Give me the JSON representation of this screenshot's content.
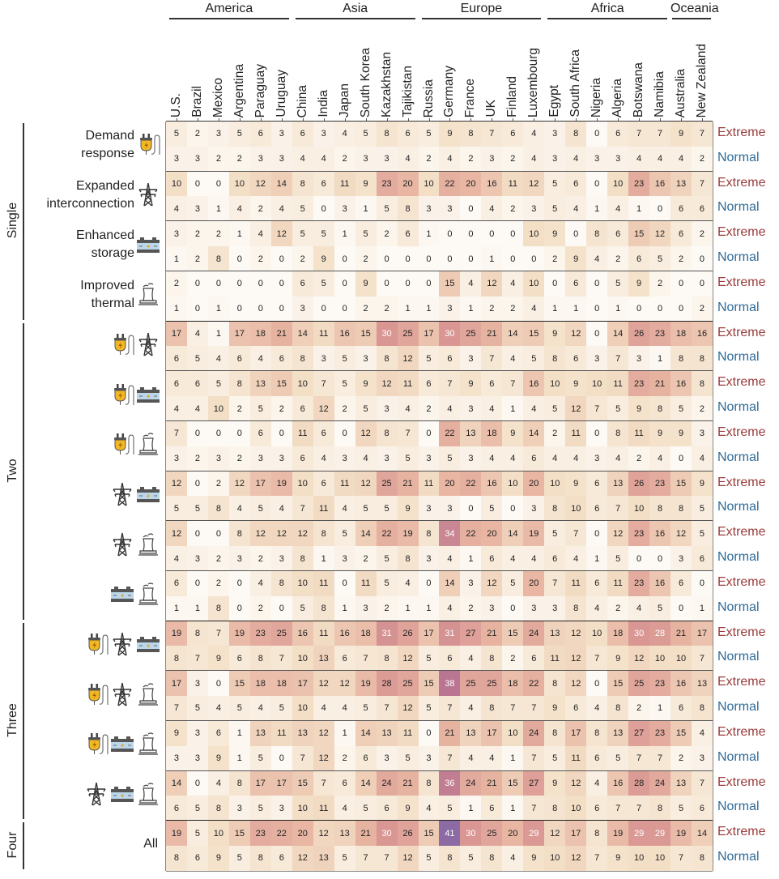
{
  "chart_data": {
    "type": "heatmap",
    "column_groups": [
      {
        "name": "America",
        "columns": [
          "U.S.",
          "Brazil",
          "Mexico",
          "Argentina",
          "Paraguay",
          "Uruguay"
        ]
      },
      {
        "name": "Asia",
        "columns": [
          "China",
          "India",
          "Japan",
          "South Korea",
          "Kazakhstan",
          "Tajikistan"
        ]
      },
      {
        "name": "Europe",
        "columns": [
          "Russia",
          "Germany",
          "France",
          "UK",
          "Finland",
          "Luxembourg"
        ]
      },
      {
        "name": "Africa",
        "columns": [
          "Egypt",
          "South Africa",
          "Nigeria",
          "Algeria",
          "Botswana",
          "Namibia"
        ]
      },
      {
        "name": "Oceania",
        "columns": [
          "Australia",
          "New Zealand"
        ]
      }
    ],
    "scenario_labels": {
      "extreme": "Extreme",
      "normal": "Normal"
    },
    "color_scale": {
      "min": 0,
      "max": 41,
      "colors": [
        "#fdfaf6",
        "#f3dfc6",
        "#e8b6a3",
        "#d99693",
        "#b97592",
        "#8c6aa3"
      ]
    },
    "row_groups": [
      {
        "name": "Single",
        "strategies": [
          {
            "label_lines": [
              "Demand",
              "response"
            ],
            "icons": [
              "plug-icon"
            ],
            "extreme": [
              5,
              2,
              3,
              5,
              6,
              3,
              6,
              3,
              4,
              5,
              8,
              6,
              5,
              9,
              8,
              7,
              6,
              4,
              3,
              8,
              0,
              6,
              7,
              7,
              9,
              7
            ],
            "normal": [
              3,
              3,
              2,
              2,
              3,
              3,
              4,
              4,
              2,
              3,
              3,
              4,
              2,
              4,
              2,
              3,
              2,
              4,
              3,
              4,
              3,
              3,
              4,
              4,
              4,
              2
            ]
          },
          {
            "label_lines": [
              "Expanded",
              "interconnection"
            ],
            "icons": [
              "transmission-tower-icon"
            ],
            "extreme": [
              10,
              0,
              0,
              10,
              12,
              14,
              8,
              6,
              11,
              9,
              23,
              20,
              10,
              22,
              20,
              16,
              11,
              12,
              5,
              6,
              0,
              10,
              23,
              16,
              13,
              7
            ],
            "normal": [
              4,
              3,
              1,
              4,
              2,
              4,
              5,
              0,
              3,
              1,
              5,
              8,
              3,
              3,
              0,
              4,
              2,
              3,
              5,
              4,
              1,
              4,
              1,
              0,
              6,
              6
            ]
          },
          {
            "label_lines": [
              "Enhanced",
              "storage"
            ],
            "icons": [
              "battery-icon"
            ],
            "extreme": [
              3,
              2,
              2,
              1,
              4,
              12,
              5,
              5,
              1,
              5,
              2,
              6,
              1,
              0,
              0,
              0,
              0,
              10,
              9,
              0,
              8,
              6,
              15,
              12,
              6,
              2
            ],
            "normal": [
              1,
              2,
              8,
              0,
              2,
              0,
              2,
              9,
              0,
              2,
              0,
              0,
              0,
              0,
              0,
              1,
              0,
              0,
              2,
              9,
              4,
              2,
              6,
              5,
              2,
              0
            ]
          },
          {
            "label_lines": [
              "Improved",
              "thermal"
            ],
            "icons": [
              "thermal-plant-icon"
            ],
            "extreme": [
              2,
              0,
              0,
              0,
              0,
              0,
              6,
              5,
              0,
              9,
              0,
              0,
              0,
              15,
              4,
              12,
              4,
              10,
              0,
              6,
              0,
              5,
              9,
              2,
              0,
              0
            ],
            "normal": [
              1,
              0,
              1,
              0,
              0,
              0,
              3,
              0,
              0,
              2,
              2,
              1,
              1,
              3,
              1,
              2,
              2,
              4,
              1,
              1,
              0,
              1,
              0,
              0,
              0,
              2
            ]
          }
        ]
      },
      {
        "name": "Two",
        "strategies": [
          {
            "label_lines": [],
            "icons": [
              "plug-icon",
              "transmission-tower-icon"
            ],
            "extreme": [
              17,
              4,
              1,
              17,
              18,
              21,
              14,
              11,
              16,
              15,
              30,
              25,
              17,
              30,
              25,
              21,
              14,
              15,
              9,
              12,
              0,
              14,
              26,
              23,
              18,
              16
            ],
            "normal": [
              6,
              5,
              4,
              6,
              4,
              6,
              8,
              3,
              5,
              3,
              8,
              12,
              5,
              6,
              3,
              7,
              4,
              5,
              8,
              6,
              3,
              7,
              3,
              1,
              8,
              8
            ]
          },
          {
            "label_lines": [],
            "icons": [
              "plug-icon",
              "battery-icon"
            ],
            "extreme": [
              6,
              6,
              5,
              8,
              13,
              15,
              10,
              7,
              5,
              9,
              12,
              11,
              6,
              7,
              9,
              6,
              7,
              16,
              10,
              9,
              10,
              11,
              23,
              21,
              16,
              8
            ],
            "normal": [
              4,
              4,
              10,
              2,
              5,
              2,
              6,
              12,
              2,
              5,
              3,
              4,
              2,
              4,
              3,
              4,
              1,
              4,
              5,
              12,
              7,
              5,
              9,
              8,
              5,
              2
            ]
          },
          {
            "label_lines": [],
            "icons": [
              "plug-icon",
              "thermal-plant-icon"
            ],
            "extreme": [
              7,
              0,
              0,
              0,
              6,
              0,
              11,
              6,
              0,
              12,
              8,
              7,
              0,
              22,
              13,
              18,
              9,
              14,
              2,
              11,
              0,
              8,
              11,
              9,
              9,
              3
            ],
            "normal": [
              3,
              2,
              3,
              2,
              3,
              3,
              6,
              4,
              3,
              4,
              3,
              5,
              3,
              5,
              3,
              4,
              4,
              6,
              4,
              4,
              3,
              4,
              2,
              4,
              0,
              4
            ]
          },
          {
            "label_lines": [],
            "icons": [
              "transmission-tower-icon",
              "battery-icon"
            ],
            "extreme": [
              12,
              0,
              2,
              12,
              17,
              19,
              10,
              6,
              11,
              12,
              25,
              21,
              11,
              20,
              22,
              16,
              10,
              20,
              10,
              9,
              6,
              13,
              26,
              23,
              15,
              9
            ],
            "normal": [
              5,
              5,
              8,
              4,
              5,
              4,
              7,
              11,
              4,
              5,
              5,
              9,
              3,
              3,
              0,
              5,
              0,
              3,
              8,
              10,
              6,
              7,
              10,
              8,
              8,
              5
            ]
          },
          {
            "label_lines": [],
            "icons": [
              "transmission-tower-icon",
              "thermal-plant-icon"
            ],
            "extreme": [
              12,
              0,
              0,
              8,
              12,
              12,
              12,
              8,
              5,
              14,
              22,
              19,
              8,
              34,
              22,
              20,
              14,
              19,
              5,
              7,
              0,
              12,
              23,
              16,
              12,
              5
            ],
            "normal": [
              4,
              3,
              2,
              3,
              2,
              3,
              8,
              1,
              3,
              2,
              5,
              8,
              3,
              4,
              1,
              6,
              4,
              4,
              6,
              4,
              1,
              5,
              0,
              0,
              3,
              6
            ]
          },
          {
            "label_lines": [],
            "icons": [
              "battery-icon",
              "thermal-plant-icon"
            ],
            "extreme": [
              6,
              0,
              2,
              0,
              4,
              8,
              10,
              11,
              0,
              11,
              5,
              4,
              0,
              14,
              3,
              12,
              5,
              20,
              7,
              11,
              6,
              11,
              23,
              16,
              6,
              0
            ],
            "normal": [
              1,
              1,
              8,
              0,
              2,
              0,
              5,
              8,
              1,
              3,
              2,
              1,
              1,
              4,
              2,
              3,
              0,
              3,
              3,
              8,
              4,
              2,
              4,
              5,
              0,
              1
            ]
          }
        ]
      },
      {
        "name": "Three",
        "strategies": [
          {
            "label_lines": [],
            "icons": [
              "plug-icon",
              "transmission-tower-icon",
              "battery-icon"
            ],
            "extreme": [
              19,
              8,
              7,
              19,
              23,
              25,
              16,
              11,
              16,
              18,
              31,
              26,
              17,
              31,
              27,
              21,
              15,
              24,
              13,
              12,
              10,
              18,
              30,
              28,
              21,
              17
            ],
            "normal": [
              8,
              7,
              9,
              6,
              8,
              7,
              10,
              13,
              6,
              7,
              8,
              12,
              5,
              6,
              4,
              8,
              2,
              6,
              11,
              12,
              7,
              9,
              12,
              10,
              10,
              7
            ]
          },
          {
            "label_lines": [],
            "icons": [
              "plug-icon",
              "transmission-tower-icon",
              "thermal-plant-icon"
            ],
            "extreme": [
              17,
              3,
              0,
              15,
              18,
              18,
              17,
              12,
              12,
              19,
              28,
              25,
              15,
              38,
              25,
              25,
              18,
              22,
              8,
              12,
              0,
              15,
              25,
              23,
              16,
              13
            ],
            "normal": [
              7,
              5,
              4,
              5,
              4,
              5,
              10,
              4,
              4,
              5,
              7,
              12,
              5,
              7,
              4,
              8,
              7,
              7,
              9,
              6,
              4,
              8,
              2,
              1,
              6,
              8
            ]
          },
          {
            "label_lines": [],
            "icons": [
              "plug-icon",
              "battery-icon",
              "thermal-plant-icon"
            ],
            "extreme": [
              9,
              3,
              6,
              1,
              13,
              11,
              13,
              12,
              1,
              14,
              13,
              11,
              0,
              21,
              13,
              17,
              10,
              24,
              8,
              17,
              8,
              13,
              27,
              23,
              15,
              4
            ],
            "normal": [
              3,
              3,
              9,
              1,
              5,
              0,
              7,
              12,
              2,
              6,
              3,
              5,
              3,
              7,
              4,
              4,
              1,
              7,
              5,
              11,
              6,
              5,
              7,
              7,
              2,
              3
            ]
          },
          {
            "label_lines": [],
            "icons": [
              "transmission-tower-icon",
              "battery-icon",
              "thermal-plant-icon"
            ],
            "extreme": [
              14,
              0,
              4,
              8,
              17,
              17,
              15,
              7,
              6,
              14,
              24,
              21,
              8,
              36,
              24,
              21,
              15,
              27,
              9,
              12,
              4,
              16,
              28,
              24,
              13,
              7
            ],
            "normal": [
              6,
              5,
              8,
              3,
              5,
              3,
              10,
              11,
              4,
              5,
              6,
              9,
              4,
              5,
              1,
              6,
              1,
              7,
              8,
              10,
              6,
              7,
              7,
              8,
              5,
              6
            ]
          }
        ]
      },
      {
        "name": "Four",
        "strategies": [
          {
            "label_lines": [
              "All"
            ],
            "icons": [],
            "extreme": [
              19,
              5,
              10,
              15,
              23,
              22,
              20,
              12,
              13,
              21,
              30,
              26,
              15,
              41,
              30,
              25,
              20,
              29,
              12,
              17,
              8,
              19,
              29,
              29,
              19,
              14
            ],
            "normal": [
              8,
              6,
              9,
              5,
              8,
              6,
              12,
              13,
              5,
              7,
              7,
              12,
              5,
              8,
              5,
              8,
              4,
              9,
              10,
              12,
              7,
              9,
              10,
              10,
              7,
              8
            ]
          }
        ]
      }
    ]
  }
}
